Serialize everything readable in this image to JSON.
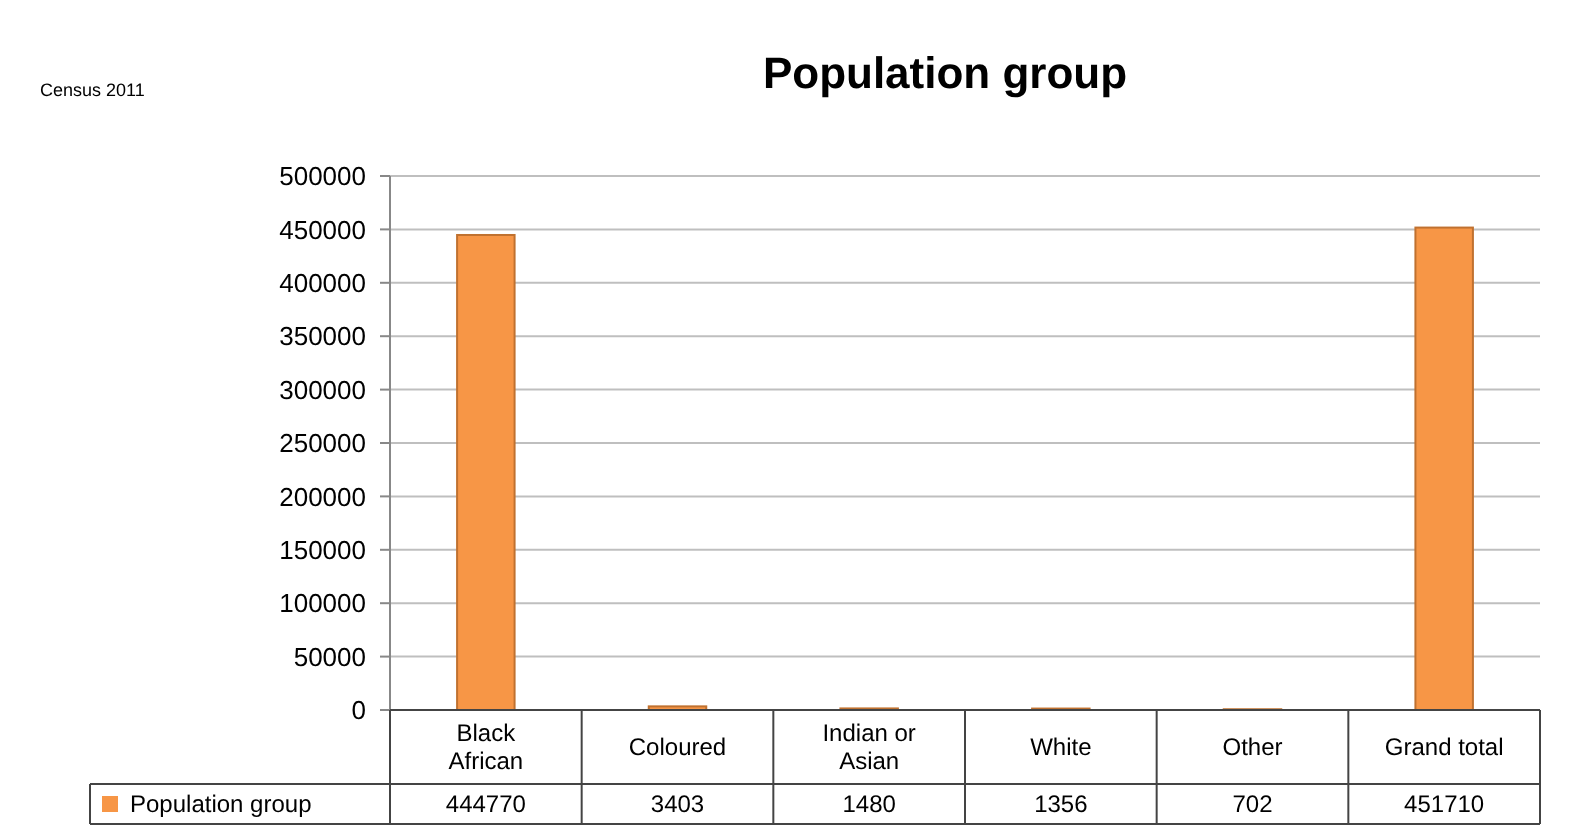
{
  "chart_data": {
    "type": "bar",
    "title": "Population group",
    "annotations": [
      "Census 2011"
    ],
    "categories": [
      "Black African",
      "Coloured",
      "Indian or Asian",
      "White",
      "Other",
      "Grand total"
    ],
    "series": [
      {
        "name": "Population group",
        "color": "#f79646",
        "values": [
          444770,
          3403,
          1480,
          1356,
          702,
          451710
        ]
      }
    ],
    "ylim": [
      0,
      500000
    ],
    "yticks": [
      0,
      50000,
      100000,
      150000,
      200000,
      250000,
      300000,
      350000,
      400000,
      450000,
      500000
    ],
    "grid": "y",
    "legend": "bottom",
    "data_labels": true
  }
}
